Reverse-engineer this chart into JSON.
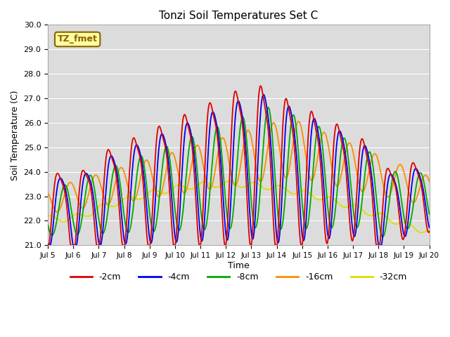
{
  "title": "Tonzi Soil Temperatures Set C",
  "xlabel": "Time",
  "ylabel": "Soil Temperature (C)",
  "xlim": [
    0,
    360
  ],
  "ylim": [
    21.0,
    30.0
  ],
  "yticks": [
    21.0,
    22.0,
    23.0,
    24.0,
    25.0,
    26.0,
    27.0,
    28.0,
    29.0,
    30.0
  ],
  "xtick_labels": [
    "Jul 5",
    "Jul 6",
    "Jul 7",
    "Jul 8",
    "Jul 9",
    "Jul 10",
    "Jul 11",
    "Jul 12",
    "Jul 13",
    "Jul 14",
    "Jul 15",
    "Jul 16",
    "Jul 17",
    "Jul 18",
    "Jul 19",
    "Jul 20"
  ],
  "xtick_positions": [
    0,
    24,
    48,
    72,
    96,
    120,
    144,
    168,
    192,
    216,
    240,
    264,
    288,
    312,
    336,
    360
  ],
  "annotation_text": "TZ_fmet",
  "annotation_color": "#8B6000",
  "annotation_bg": "#FFFFA0",
  "line_colors": [
    "#DD0000",
    "#0000EE",
    "#00AA00",
    "#FF8C00",
    "#DDDD00"
  ],
  "line_labels": [
    "-2cm",
    "-4cm",
    "-8cm",
    "-16cm",
    "-32cm"
  ],
  "plot_bg": "#DCDCDC",
  "grid_color": "#FFFFFF",
  "n_points": 721
}
